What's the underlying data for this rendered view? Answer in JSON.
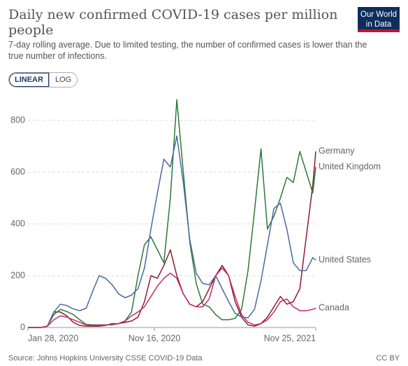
{
  "chart_data": {
    "type": "line",
    "title": "Daily new confirmed COVID-19 cases per million people",
    "subtitle": "7-day rolling average. Due to limited testing, the number of confirmed cases is lower than the true number of infections.",
    "scale_options": [
      "LINEAR",
      "LOG"
    ],
    "logo": [
      "Our World",
      "in Data"
    ],
    "source": "Source: Johns Hopkins University CSSE COVID-19 Data",
    "license": "CC BY",
    "x": [
      "2020-01-28",
      "2020-02-12",
      "2020-02-27",
      "2020-03-13",
      "2020-03-28",
      "2020-04-12",
      "2020-04-27",
      "2020-05-12",
      "2020-05-27",
      "2020-06-11",
      "2020-06-26",
      "2020-07-11",
      "2020-07-26",
      "2020-08-10",
      "2020-08-25",
      "2020-09-09",
      "2020-09-24",
      "2020-10-09",
      "2020-10-24",
      "2020-11-08",
      "2020-11-23",
      "2020-12-08",
      "2020-12-23",
      "2021-01-07",
      "2021-01-22",
      "2021-02-06",
      "2021-02-21",
      "2021-03-08",
      "2021-03-23",
      "2021-04-07",
      "2021-04-22",
      "2021-05-07",
      "2021-05-22",
      "2021-06-06",
      "2021-06-21",
      "2021-07-06",
      "2021-07-21",
      "2021-08-05",
      "2021-08-20",
      "2021-09-04",
      "2021-09-19",
      "2021-10-04",
      "2021-10-19",
      "2021-11-03",
      "2021-11-18",
      "2021-11-25"
    ],
    "xlim": [
      "2020-01-28",
      "2021-11-25"
    ],
    "xticks": [
      {
        "value": "2020-01-28",
        "label": "Jan 28, 2020"
      },
      {
        "value": "2020-11-16",
        "label": "Nov 16, 2020"
      },
      {
        "value": "2021-11-25",
        "label": "Nov 25, 2021"
      }
    ],
    "ylim": [
      0,
      900
    ],
    "yticks": [
      0,
      200,
      400,
      600,
      800
    ],
    "grid": true,
    "series": [
      {
        "name": "Germany",
        "color": "#8c1c2c",
        "values": [
          0,
          0,
          0,
          5,
          60,
          60,
          45,
          20,
          8,
          5,
          5,
          5,
          8,
          15,
          15,
          20,
          25,
          40,
          100,
          200,
          190,
          240,
          300,
          200,
          130,
          90,
          80,
          100,
          150,
          200,
          240,
          200,
          100,
          40,
          10,
          5,
          15,
          40,
          80,
          120,
          90,
          100,
          150,
          350,
          550,
          680
        ]
      },
      {
        "name": "United Kingdom",
        "color": "#2b7a3a",
        "values": [
          0,
          0,
          0,
          5,
          50,
          70,
          62,
          50,
          30,
          12,
          10,
          10,
          10,
          12,
          15,
          25,
          60,
          200,
          320,
          350,
          300,
          250,
          500,
          880,
          600,
          330,
          170,
          90,
          80,
          50,
          30,
          30,
          35,
          70,
          220,
          450,
          690,
          380,
          430,
          500,
          580,
          560,
          680,
          600,
          520,
          620
        ]
      },
      {
        "name": "United States",
        "color": "#4a6a9e",
        "values": [
          0,
          0,
          0,
          5,
          60,
          90,
          85,
          72,
          65,
          75,
          140,
          200,
          190,
          165,
          130,
          115,
          125,
          150,
          230,
          380,
          520,
          650,
          620,
          740,
          560,
          340,
          210,
          170,
          165,
          200,
          150,
          100,
          55,
          40,
          38,
          70,
          180,
          320,
          460,
          480,
          380,
          250,
          220,
          220,
          270,
          260
        ]
      },
      {
        "name": "Canada",
        "color": "#c02a6b",
        "values": [
          0,
          0,
          0,
          5,
          30,
          45,
          40,
          30,
          20,
          10,
          8,
          8,
          10,
          10,
          15,
          25,
          45,
          60,
          80,
          120,
          160,
          190,
          210,
          190,
          130,
          90,
          80,
          80,
          110,
          200,
          230,
          200,
          120,
          50,
          20,
          10,
          15,
          30,
          60,
          100,
          110,
          80,
          65,
          65,
          70,
          75
        ]
      }
    ]
  }
}
